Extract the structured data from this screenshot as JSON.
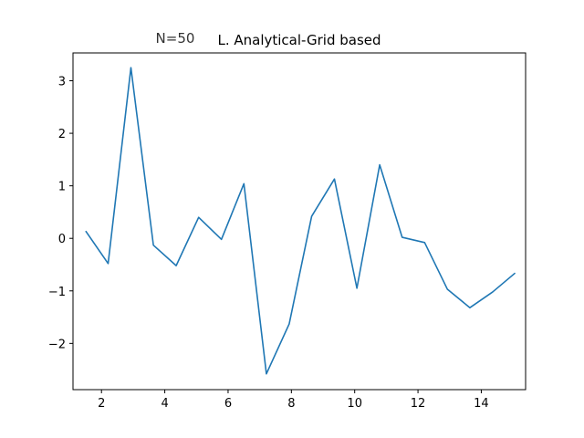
{
  "chart_data": {
    "type": "line",
    "title": "L. Analytical-Grid based",
    "annotation": "N=50",
    "xlabel": "",
    "ylabel": "",
    "xlim": [
      1.1,
      15.4
    ],
    "ylim": [
      -2.88,
      3.53
    ],
    "x_ticks": [
      2,
      4,
      6,
      8,
      10,
      12,
      14
    ],
    "y_ticks": [
      -2,
      -1,
      0,
      1,
      2,
      3
    ],
    "grid": false,
    "series": [
      {
        "color": "#1f77b4",
        "x": [
          1.5,
          2.21,
          2.93,
          3.64,
          4.36,
          5.07,
          5.79,
          6.5,
          7.21,
          7.93,
          8.64,
          9.36,
          10.07,
          10.79,
          11.5,
          12.21,
          12.93,
          13.64,
          14.36,
          15.07
        ],
        "y": [
          0.14,
          -0.48,
          3.25,
          -0.13,
          -0.52,
          0.4,
          -0.02,
          1.04,
          -2.58,
          -1.63,
          0.42,
          1.13,
          -0.95,
          1.4,
          0.02,
          -0.08,
          -0.97,
          -1.32,
          -1.02,
          -0.66
        ]
      }
    ]
  }
}
